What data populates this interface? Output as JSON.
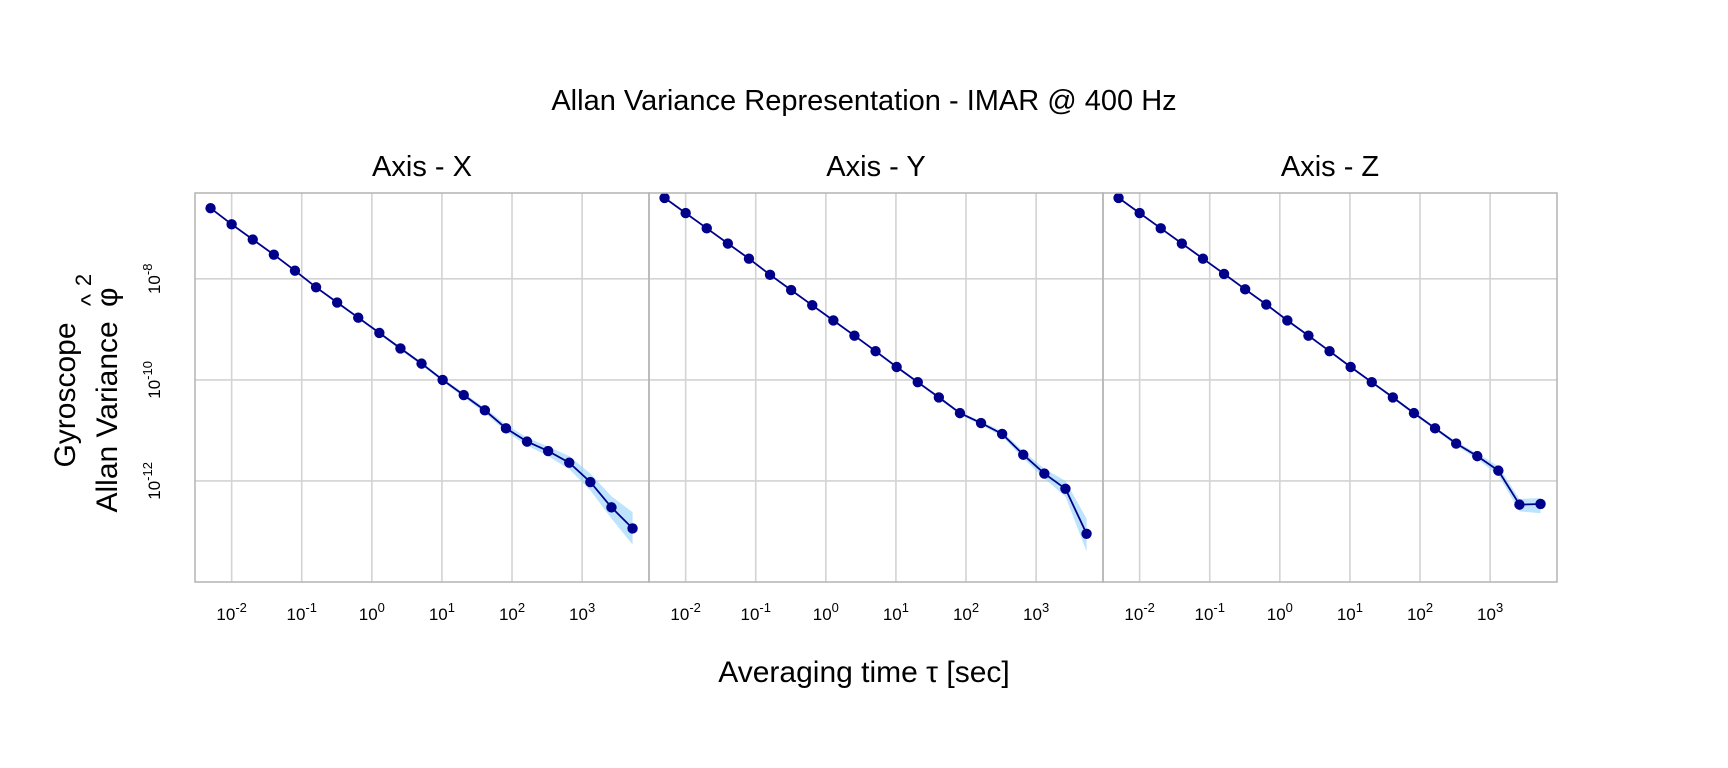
{
  "chart_data": {
    "type": "line",
    "title": "Allan Variance Representation - IMAR @ 400 Hz",
    "xlabel": "Averaging time τ [sec]",
    "ylabel_line1": "Gyroscope",
    "ylabel_line2": "Allan Variance",
    "ylabel_symbol": "φ",
    "ylabel_hat": "^",
    "ylabel_exp": "2",
    "x_scale": "log10",
    "y_scale": "log10",
    "xlim": [
      0.003,
      9000
    ],
    "ylim": [
      1e-14,
      5e-07
    ],
    "x_ticks": [
      {
        "base": "10",
        "exp": "-2",
        "value": 0.01
      },
      {
        "base": "10",
        "exp": "-1",
        "value": 0.1
      },
      {
        "base": "10",
        "exp": "0",
        "value": 1
      },
      {
        "base": "10",
        "exp": "1",
        "value": 10
      },
      {
        "base": "10",
        "exp": "2",
        "value": 100
      },
      {
        "base": "10",
        "exp": "3",
        "value": 1000
      }
    ],
    "y_ticks": [
      {
        "base": "10",
        "exp": "-8",
        "value": 1e-08
      },
      {
        "base": "10",
        "exp": "-10",
        "value": 1e-10
      },
      {
        "base": "10",
        "exp": "-12",
        "value": 1e-12
      }
    ],
    "grid": true,
    "line_color": "#00008b",
    "band_color": "#87cefa",
    "panels": [
      {
        "name": "Axis - X",
        "x": [
          0.005,
          0.01,
          0.02,
          0.04,
          0.08,
          0.16,
          0.32,
          0.64,
          1.28,
          2.56,
          5.12,
          10.24,
          20.48,
          40.96,
          81.92,
          163.84,
          327.68,
          655.36,
          1310.72,
          2621.44,
          5242.88
        ],
        "y": [
          2.5e-07,
          1.2e-07,
          6e-08,
          3e-08,
          1.45e-08,
          6.8e-09,
          3.4e-09,
          1.7e-09,
          8.5e-10,
          4.2e-10,
          2.1e-10,
          1e-10,
          5e-11,
          2.5e-11,
          1.1e-11,
          6e-12,
          3.9e-12,
          2.3e-12,
          9.5e-13,
          3e-13,
          1.15e-13
        ],
        "lower": [
          2.4e-07,
          1.15e-07,
          5.8e-08,
          2.9e-08,
          1.4e-08,
          6.5e-09,
          3.2e-09,
          1.6e-09,
          8e-10,
          3.9e-10,
          1.95e-10,
          9.2e-11,
          4.5e-11,
          2.2e-11,
          9.5e-12,
          5e-12,
          3.1e-12,
          1.7e-12,
          6.5e-13,
          1.8e-13,
          5.5e-14
        ],
        "upper": [
          2.6e-07,
          1.25e-07,
          6.2e-08,
          3.1e-08,
          1.5e-08,
          7.1e-09,
          3.6e-09,
          1.8e-09,
          9e-10,
          4.5e-10,
          2.25e-10,
          1.08e-10,
          5.5e-11,
          2.8e-11,
          1.3e-11,
          7.2e-12,
          4.8e-12,
          3.1e-12,
          1.4e-12,
          5e-13,
          2.4e-13
        ]
      },
      {
        "name": "Axis - Y",
        "x": [
          0.005,
          0.01,
          0.02,
          0.04,
          0.08,
          0.16,
          0.32,
          0.64,
          1.28,
          2.56,
          5.12,
          10.24,
          20.48,
          40.96,
          81.92,
          163.84,
          327.68,
          655.36,
          1310.72,
          2621.44,
          5242.88
        ],
        "y": [
          4e-07,
          2e-07,
          1e-07,
          5e-08,
          2.5e-08,
          1.2e-08,
          6e-09,
          3e-09,
          1.5e-09,
          7.5e-10,
          3.7e-10,
          1.8e-10,
          9e-11,
          4.5e-11,
          2.2e-11,
          1.4e-11,
          8.5e-12,
          3.3e-12,
          1.4e-12,
          7e-13,
          9e-14
        ],
        "lower": [
          3.85e-07,
          1.93e-07,
          9.6e-08,
          4.8e-08,
          2.4e-08,
          1.15e-08,
          5.75e-09,
          2.85e-09,
          1.42e-09,
          7.1e-10,
          3.5e-10,
          1.7e-10,
          8.5e-11,
          4.2e-11,
          2.05e-11,
          1.28e-11,
          7.6e-12,
          2.8e-12,
          1.12e-12,
          4.9e-13,
          4e-14
        ],
        "upper": [
          4.15e-07,
          2.07e-07,
          1.04e-07,
          5.2e-08,
          2.6e-08,
          1.25e-08,
          6.25e-09,
          3.15e-09,
          1.58e-09,
          7.9e-10,
          3.9e-10,
          1.9e-10,
          9.5e-11,
          4.8e-11,
          2.35e-11,
          1.52e-11,
          9.5e-12,
          3.9e-12,
          1.75e-12,
          1e-12,
          1.8e-13
        ]
      },
      {
        "name": "Axis - Z",
        "x": [
          0.005,
          0.01,
          0.02,
          0.04,
          0.08,
          0.16,
          0.32,
          0.64,
          1.28,
          2.56,
          5.12,
          10.24,
          20.48,
          40.96,
          81.92,
          163.84,
          327.68,
          655.36,
          1310.72,
          2621.44,
          5242.88
        ],
        "y": [
          4e-07,
          2e-07,
          1e-07,
          5e-08,
          2.5e-08,
          1.25e-08,
          6.2e-09,
          3.1e-09,
          1.5e-09,
          7.5e-10,
          3.7e-10,
          1.8e-10,
          9e-11,
          4.5e-11,
          2.2e-11,
          1.1e-11,
          5.5e-12,
          3.1e-12,
          1.6e-12,
          3.4e-13,
          3.5e-13
        ],
        "lower": [
          3.85e-07,
          1.93e-07,
          9.6e-08,
          4.8e-08,
          2.4e-08,
          1.2e-08,
          5.9e-09,
          2.95e-09,
          1.42e-09,
          7.1e-10,
          3.5e-10,
          1.7e-10,
          8.5e-11,
          4.2e-11,
          2.05e-11,
          1.02e-11,
          5e-12,
          2.7e-12,
          1.3e-12,
          2.5e-13,
          2.3e-13
        ],
        "upper": [
          4.15e-07,
          2.07e-07,
          1.04e-07,
          5.2e-08,
          2.6e-08,
          1.3e-08,
          6.5e-09,
          3.25e-09,
          1.58e-09,
          7.9e-10,
          3.9e-10,
          1.9e-10,
          9.5e-11,
          4.8e-11,
          2.35e-11,
          1.18e-11,
          6e-12,
          3.5e-12,
          1.95e-12,
          4.4e-13,
          4.6e-13
        ]
      }
    ]
  }
}
